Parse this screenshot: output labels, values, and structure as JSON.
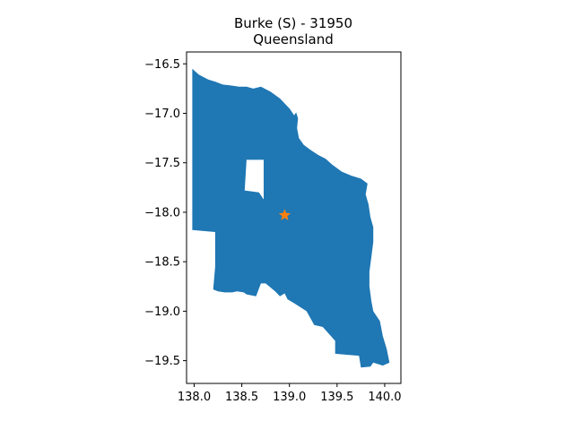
{
  "chart_data": {
    "type": "map",
    "title": "Burke (S) - 31950",
    "subtitle": "Queensland",
    "xlabel": "",
    "ylabel": "",
    "xlim": [
      137.92,
      140.17
    ],
    "ylim": [
      -19.73,
      -16.38
    ],
    "x_ticks": [
      138.0,
      138.5,
      139.0,
      139.5,
      140.0
    ],
    "x_tick_labels": [
      "138.0",
      "138.5",
      "139.0",
      "139.5",
      "140.0"
    ],
    "y_ticks": [
      -16.5,
      -17.0,
      -17.5,
      -18.0,
      -18.5,
      -19.0,
      -19.5
    ],
    "y_tick_labels": [
      "−16.5",
      "−17.0",
      "−17.5",
      "−18.0",
      "−18.5",
      "−19.0",
      "−19.5"
    ],
    "grid": false,
    "fill_color": "#1f77b4",
    "marker_color": "#ff7f0e",
    "marker_symbol": "star",
    "marker_point": {
      "lon": 138.95,
      "lat": -18.03
    },
    "region_outline": [
      [
        137.98,
        -16.55
      ],
      [
        138.05,
        -16.61
      ],
      [
        138.15,
        -16.66
      ],
      [
        138.22,
        -16.68
      ],
      [
        138.3,
        -16.71
      ],
      [
        138.4,
        -16.72
      ],
      [
        138.47,
        -16.73
      ],
      [
        138.55,
        -16.73
      ],
      [
        138.62,
        -16.75
      ],
      [
        138.7,
        -16.73
      ],
      [
        138.8,
        -16.78
      ],
      [
        138.9,
        -16.85
      ],
      [
        139.0,
        -16.95
      ],
      [
        139.05,
        -17.02
      ],
      [
        139.07,
        -16.99
      ],
      [
        139.09,
        -17.05
      ],
      [
        139.08,
        -17.15
      ],
      [
        139.1,
        -17.25
      ],
      [
        139.15,
        -17.32
      ],
      [
        139.22,
        -17.37
      ],
      [
        139.3,
        -17.42
      ],
      [
        139.38,
        -17.46
      ],
      [
        139.45,
        -17.52
      ],
      [
        139.55,
        -17.59
      ],
      [
        139.65,
        -17.63
      ],
      [
        139.75,
        -17.66
      ],
      [
        139.82,
        -17.71
      ],
      [
        139.8,
        -17.82
      ],
      [
        139.83,
        -17.92
      ],
      [
        139.85,
        -18.05
      ],
      [
        139.88,
        -18.15
      ],
      [
        139.88,
        -18.3
      ],
      [
        139.86,
        -18.45
      ],
      [
        139.84,
        -18.6
      ],
      [
        139.84,
        -18.75
      ],
      [
        139.86,
        -18.9
      ],
      [
        139.88,
        -19.0
      ],
      [
        139.95,
        -19.1
      ],
      [
        139.98,
        -19.25
      ],
      [
        140.02,
        -19.38
      ],
      [
        140.05,
        -19.52
      ],
      [
        139.98,
        -19.55
      ],
      [
        139.88,
        -19.52
      ],
      [
        139.85,
        -19.56
      ],
      [
        139.75,
        -19.57
      ],
      [
        139.73,
        -19.45
      ],
      [
        139.6,
        -19.44
      ],
      [
        139.48,
        -19.43
      ],
      [
        139.48,
        -19.3
      ],
      [
        139.35,
        -19.16
      ],
      [
        139.26,
        -19.14
      ],
      [
        139.22,
        -19.07
      ],
      [
        139.18,
        -19.0
      ],
      [
        139.05,
        -18.92
      ],
      [
        138.98,
        -18.88
      ],
      [
        138.95,
        -18.82
      ],
      [
        138.9,
        -18.85
      ],
      [
        138.85,
        -18.8
      ],
      [
        138.75,
        -18.72
      ],
      [
        138.7,
        -18.72
      ],
      [
        138.65,
        -18.85
      ],
      [
        138.55,
        -18.83
      ],
      [
        138.52,
        -18.81
      ],
      [
        138.45,
        -18.8
      ],
      [
        138.4,
        -18.81
      ],
      [
        138.32,
        -18.81
      ],
      [
        138.25,
        -18.8
      ],
      [
        138.2,
        -18.78
      ],
      [
        138.22,
        -18.55
      ],
      [
        138.22,
        -18.37
      ],
      [
        138.22,
        -18.2
      ],
      [
        138.1,
        -18.19
      ],
      [
        137.98,
        -18.18
      ]
    ],
    "region_hole": [
      [
        138.55,
        -17.47
      ],
      [
        138.73,
        -17.47
      ],
      [
        138.73,
        -17.87
      ],
      [
        138.68,
        -17.8
      ],
      [
        138.53,
        -17.78
      ]
    ]
  }
}
